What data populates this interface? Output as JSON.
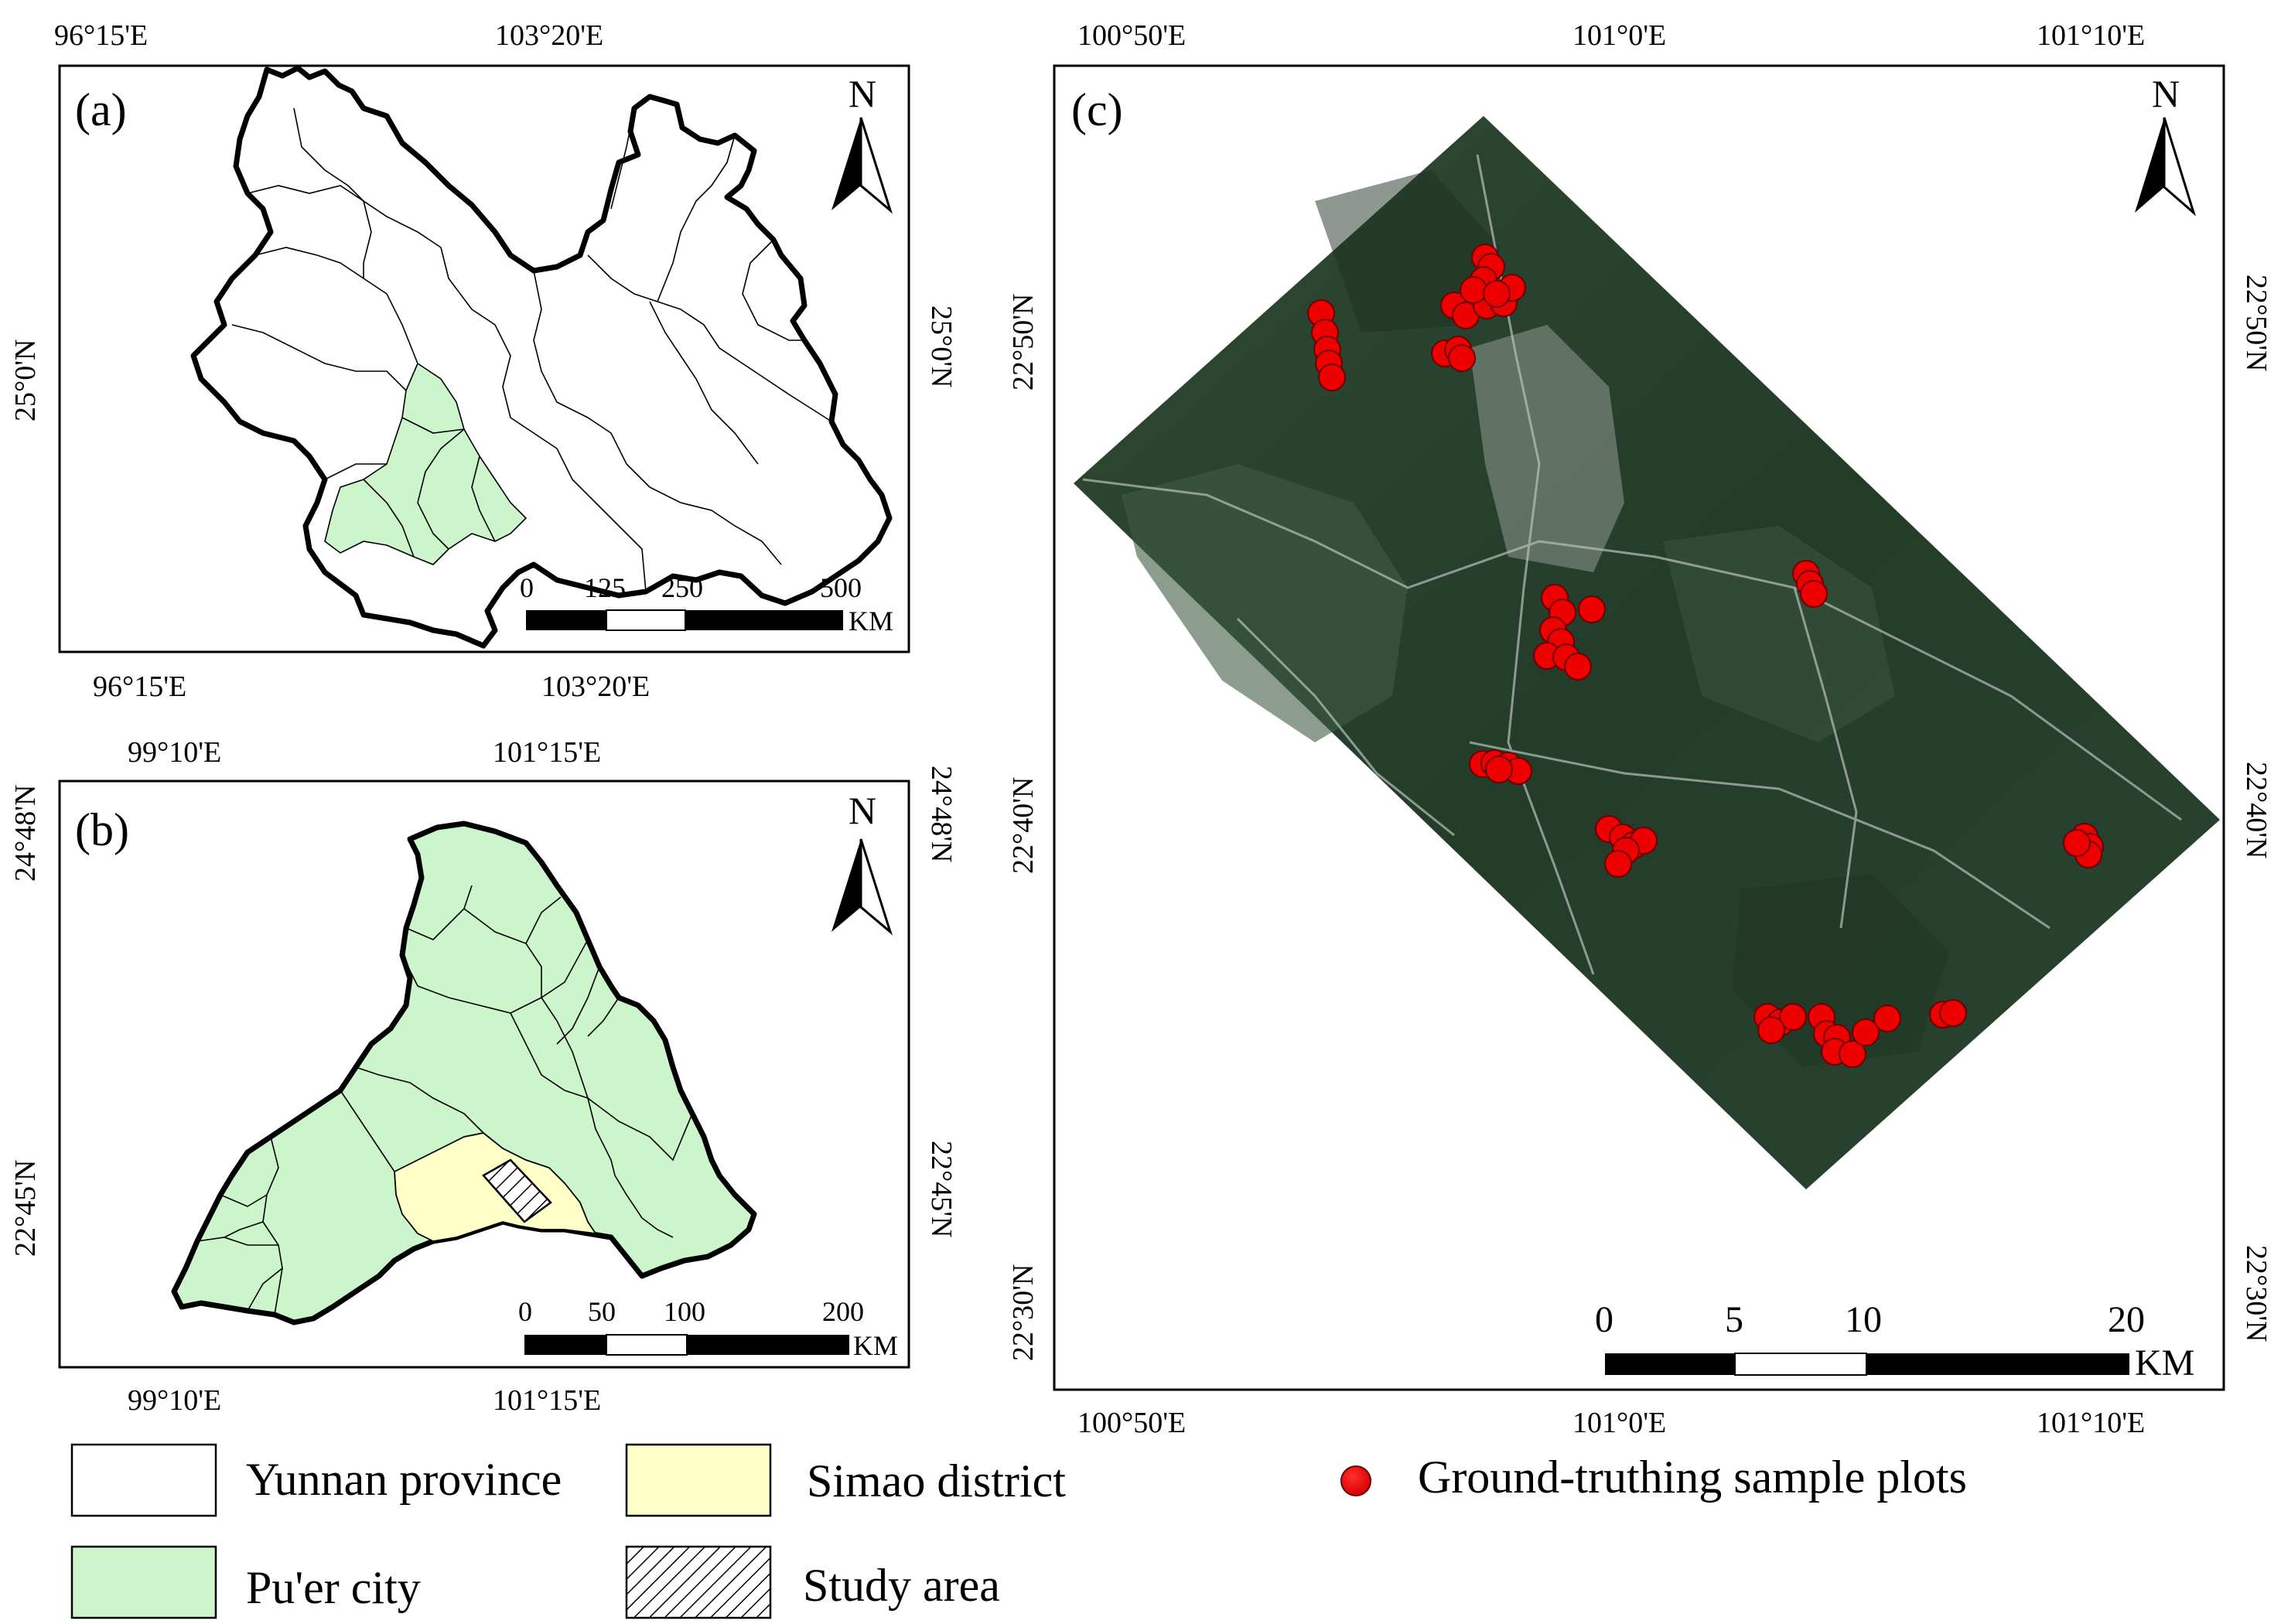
{
  "panels": {
    "a": {
      "label": "(a)",
      "top_ticks": [
        "96°15'E",
        "103°20'E"
      ],
      "bottom_ticks": [
        "96°15'E",
        "103°20'E"
      ],
      "left_tick": "25°0'N",
      "right_tick": "25°0'N",
      "north": "N",
      "scale": {
        "labels": [
          "0",
          "125",
          "250",
          "500"
        ],
        "unit": "KM"
      }
    },
    "b": {
      "label": "(b)",
      "top_ticks": [
        "99°10'E",
        "101°15'E"
      ],
      "bottom_ticks": [
        "99°10'E",
        "101°15'E"
      ],
      "left_ticks": [
        "24°48'N",
        "22°45'N"
      ],
      "right_ticks": [
        "24°48'N",
        "22°45'N"
      ],
      "north": "N",
      "scale": {
        "labels": [
          "0",
          "50",
          "100",
          "200"
        ],
        "unit": "KM"
      }
    },
    "c": {
      "label": "(c)",
      "top_ticks": [
        "100°50'E",
        "101°0'E",
        "101°10'E"
      ],
      "bottom_ticks": [
        "100°50'E",
        "101°0'E",
        "101°10'E"
      ],
      "left_ticks": [
        "22°50'N",
        "22°40'N",
        "22°30'N"
      ],
      "right_ticks": [
        "22°50'N",
        "22°40'N",
        "22°30'N"
      ],
      "north": "N",
      "scale": {
        "labels": [
          "0",
          "5",
          "10",
          "20"
        ],
        "unit": "KM"
      }
    }
  },
  "legend": {
    "yunnan": "Yunnan province",
    "puer": "Pu'er city",
    "simao": "Simao district",
    "study": "Study area",
    "plots": "Ground-truthing sample plots"
  },
  "colors": {
    "puer_fill": "#ccf5cc",
    "simao_fill": "#ffffc8",
    "plot_red": "#ee0000",
    "imagery_dark": "#253d2c",
    "imagery_mid": "#3d5a3f"
  }
}
